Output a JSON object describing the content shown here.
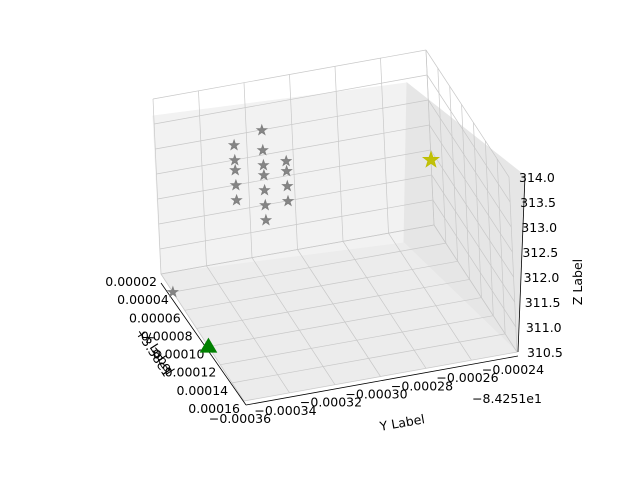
{
  "chart_data": {
    "type": "scatter",
    "projection": "3d",
    "title": "",
    "xlabel": "X Label",
    "ylabel": "Y Label",
    "zlabel": "Z Label",
    "x_offset_label": "+3.38e1",
    "y_offset_label": "−8.4251e1",
    "x_ticks": [
      "0.00002",
      "0.00004",
      "0.00006",
      "0.00008",
      "0.00010",
      "0.00012",
      "0.00014",
      "0.00016"
    ],
    "y_ticks": [
      "−0.00036",
      "−0.00034",
      "−0.00032",
      "−0.00030",
      "−0.00028",
      "−0.00026",
      "−0.00024"
    ],
    "z_ticks": [
      "310.5",
      "311.0",
      "311.5",
      "312.0",
      "312.5",
      "313.0",
      "313.5",
      "314.0"
    ],
    "grid": true,
    "colors": {
      "series_gray": "#808080",
      "series_green": "#008000",
      "series_yellow": "#bfbf00",
      "pane": "#f2f2f2",
      "grid": "#b0b0b0"
    },
    "series": [
      {
        "marker": "star",
        "color": "#808080",
        "points": [
          {
            "x": 9e-05,
            "y": -0.00033,
            "z": 314.4
          },
          {
            "x": 8e-05,
            "y": -0.00034,
            "z": 314.0
          },
          {
            "x": 9e-05,
            "y": -0.00033,
            "z": 314.0
          },
          {
            "x": 8e-05,
            "y": -0.00034,
            "z": 313.7
          },
          {
            "x": 9e-05,
            "y": -0.00033,
            "z": 313.7
          },
          {
            "x": 9e-05,
            "y": -0.00032,
            "z": 313.7
          },
          {
            "x": 8e-05,
            "y": -0.00034,
            "z": 313.5
          },
          {
            "x": 9e-05,
            "y": -0.00033,
            "z": 313.5
          },
          {
            "x": 9e-05,
            "y": -0.00032,
            "z": 313.5
          },
          {
            "x": 8e-05,
            "y": -0.00034,
            "z": 313.2
          },
          {
            "x": 9e-05,
            "y": -0.00033,
            "z": 313.2
          },
          {
            "x": 9e-05,
            "y": -0.00032,
            "z": 313.2
          },
          {
            "x": 8e-05,
            "y": -0.00034,
            "z": 312.9
          },
          {
            "x": 9e-05,
            "y": -0.00033,
            "z": 312.9
          },
          {
            "x": 9e-05,
            "y": -0.00032,
            "z": 312.9
          },
          {
            "x": 9e-05,
            "y": -0.00033,
            "z": 312.6
          },
          {
            "x": 4e-05,
            "y": -0.00036,
            "z": 310.5
          }
        ]
      },
      {
        "marker": "triangle",
        "color": "#008000",
        "points": [
          {
            "x": 0.0001,
            "y": -0.00036,
            "z": 310.5
          }
        ]
      },
      {
        "marker": "star",
        "color": "#bfbf00",
        "points": [
          {
            "x": 2e-05,
            "y": -0.00024,
            "z": 311.8
          }
        ]
      }
    ]
  }
}
